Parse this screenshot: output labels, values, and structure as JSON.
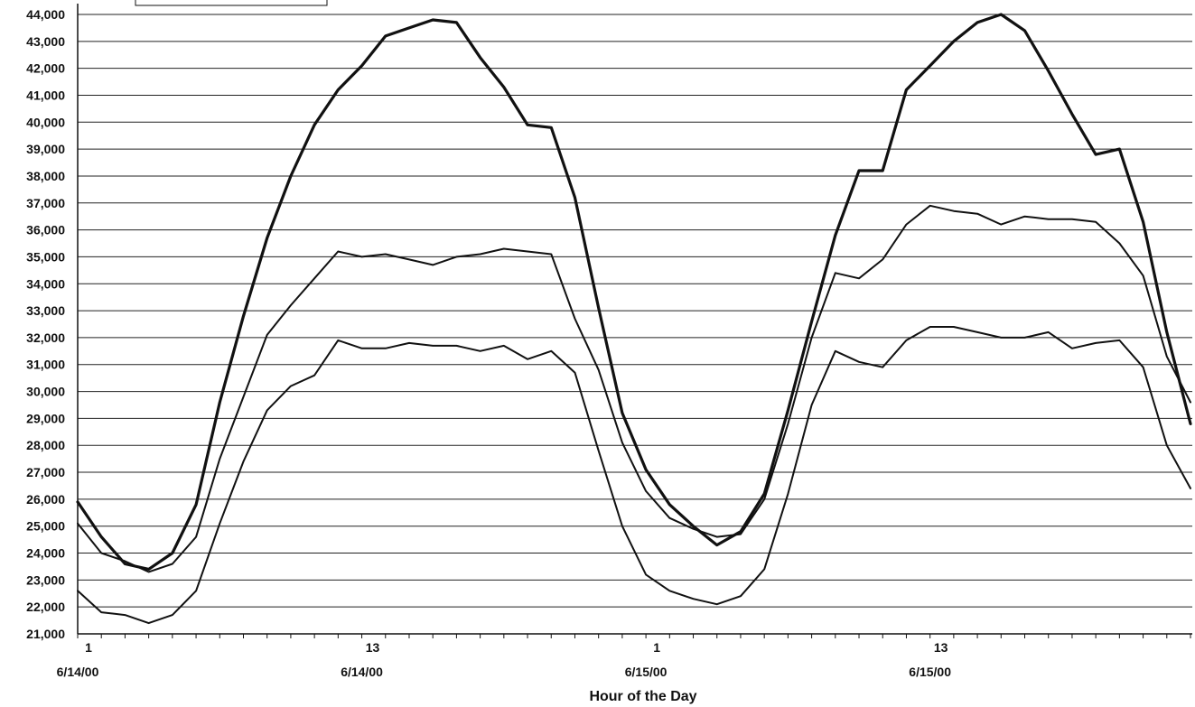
{
  "chart_data": {
    "type": "line",
    "title": "",
    "xlabel": "Hour of the Day",
    "ylabel": "",
    "ylim": [
      21000,
      44000
    ],
    "ystep": 1000,
    "grid": true,
    "x_count": 48,
    "x_tick_labels": [
      {
        "index": 0,
        "hour": "1",
        "date": "6/14/00"
      },
      {
        "index": 12,
        "hour": "13",
        "date": "6/14/00"
      },
      {
        "index": 24,
        "hour": "1",
        "date": "6/15/00"
      },
      {
        "index": 36,
        "hour": "13",
        "date": "6/15/00"
      }
    ],
    "series": [
      {
        "values": [
          25900,
          24600,
          23600,
          23400,
          24000,
          25800,
          29600,
          32800,
          35700,
          38000,
          39900,
          41200,
          42100,
          43200,
          43500,
          43800,
          43700,
          42400,
          41300,
          39900,
          39800,
          37200,
          33100,
          29200,
          27100,
          25800,
          25000,
          24300,
          24800,
          26200,
          29300,
          32600,
          35800,
          38200,
          38200,
          41200,
          42100,
          43000,
          43700,
          44000,
          43400,
          41900,
          40300,
          38800,
          39000,
          36300,
          32200,
          28800
        ]
      },
      {
        "values": [
          25100,
          24000,
          23700,
          23300,
          23600,
          24600,
          27500,
          29800,
          32100,
          33200,
          34200,
          35200,
          35000,
          35100,
          34900,
          34700,
          35000,
          35100,
          35300,
          35200,
          35100,
          32700,
          30800,
          28100,
          26300,
          25300,
          24900,
          24600,
          24700,
          26000,
          28800,
          32000,
          34400,
          34200,
          34900,
          36200,
          36900,
          36700,
          36600,
          36200,
          36500,
          36400,
          36400,
          36300,
          35500,
          34300,
          31300,
          29600
        ]
      },
      {
        "values": [
          22600,
          21800,
          21700,
          21400,
          21700,
          22600,
          25100,
          27400,
          29300,
          30200,
          30600,
          31900,
          31600,
          31600,
          31800,
          31700,
          31700,
          31500,
          31700,
          31200,
          31500,
          30700,
          27800,
          25000,
          23200,
          22600,
          22300,
          22100,
          22400,
          23400,
          26200,
          29500,
          31500,
          31100,
          30900,
          31900,
          32400,
          32400,
          32200,
          32000,
          32000,
          32200,
          31600,
          31800,
          31900,
          30900,
          28000,
          26400
        ]
      }
    ]
  }
}
